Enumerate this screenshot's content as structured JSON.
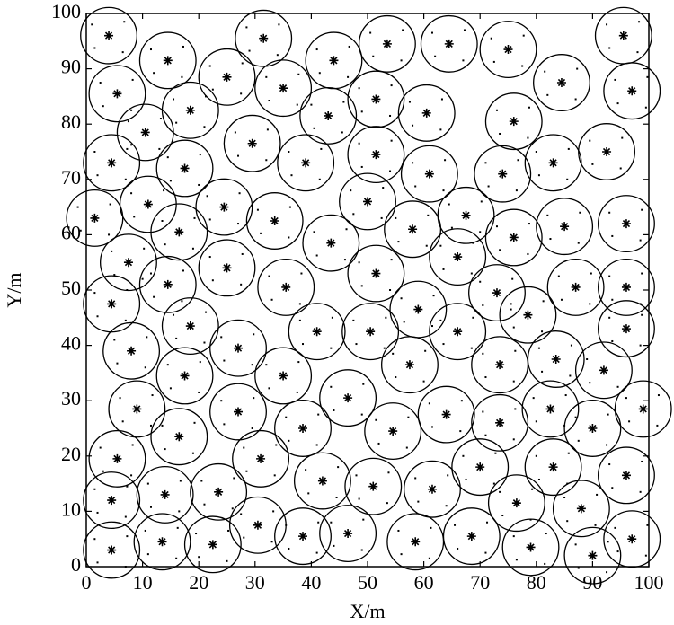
{
  "chart_data": {
    "type": "scatter",
    "x_label": "X/m",
    "y_label": "Y/m",
    "xlim": [
      0,
      100
    ],
    "ylim": [
      0,
      100
    ],
    "xticks": [
      0,
      10,
      20,
      30,
      40,
      50,
      60,
      70,
      80,
      90,
      100
    ],
    "yticks": [
      0,
      10,
      20,
      30,
      40,
      50,
      60,
      70,
      80,
      90,
      100
    ],
    "radius": 5,
    "color": "#000000",
    "x": [
      4,
      14.5,
      31.5,
      25,
      44,
      53.5,
      64.5,
      75,
      95.5,
      5.5,
      18.5,
      35,
      51.5,
      84.5,
      97,
      10.5,
      43,
      29.5,
      60.5,
      76,
      4.5,
      17.5,
      39,
      51.5,
      61,
      74,
      83,
      92.5,
      11,
      1.5,
      24.5,
      33.5,
      50,
      67.5,
      16.5,
      43.5,
      58,
      76,
      85,
      96,
      7.5,
      25,
      66,
      51.5,
      14.5,
      35.5,
      4.5,
      73,
      87,
      96,
      59,
      78.5,
      18.5,
      41,
      50.5,
      66,
      96,
      8,
      27,
      57.5,
      73.5,
      83.5,
      17.5,
      35,
      92,
      46.5,
      9,
      27,
      64,
      73.5,
      82.5,
      99,
      38.5,
      54.5,
      90,
      16.5,
      5.5,
      31,
      70,
      83,
      96,
      42,
      51,
      61.5,
      14,
      23.5,
      4.5,
      76.5,
      88,
      30.5,
      38.5,
      46.5,
      68.5,
      58.5,
      13.5,
      22.5,
      4.5,
      79,
      97,
      90
    ],
    "y": [
      96,
      91.5,
      95.5,
      88.5,
      91.5,
      94.5,
      94.5,
      93.5,
      96,
      85.5,
      82.5,
      86.5,
      84.5,
      87.5,
      86,
      78.5,
      81.5,
      76.5,
      82,
      80.5,
      73,
      72,
      73,
      74.5,
      71,
      71,
      73,
      75,
      65.5,
      63,
      65,
      62.5,
      66,
      63.5,
      60.5,
      58.5,
      61,
      59.5,
      61.5,
      62,
      55,
      54,
      56,
      53,
      51,
      50.5,
      47.5,
      49.5,
      50.5,
      50.5,
      46.5,
      45.5,
      43.5,
      42.5,
      42.5,
      42.5,
      43,
      39,
      39.5,
      36.5,
      36.5,
      37.5,
      34.5,
      34.5,
      35.5,
      30.5,
      28.5,
      28,
      27.5,
      26,
      28.5,
      28.5,
      25,
      24.5,
      25,
      23.5,
      19.5,
      19.5,
      18,
      18,
      16.5,
      15.5,
      14.5,
      14,
      13,
      13.5,
      12,
      11.5,
      10.5,
      7.5,
      5.5,
      6,
      5.5,
      4.5,
      4.5,
      4,
      3,
      3.5,
      5,
      2
    ]
  }
}
